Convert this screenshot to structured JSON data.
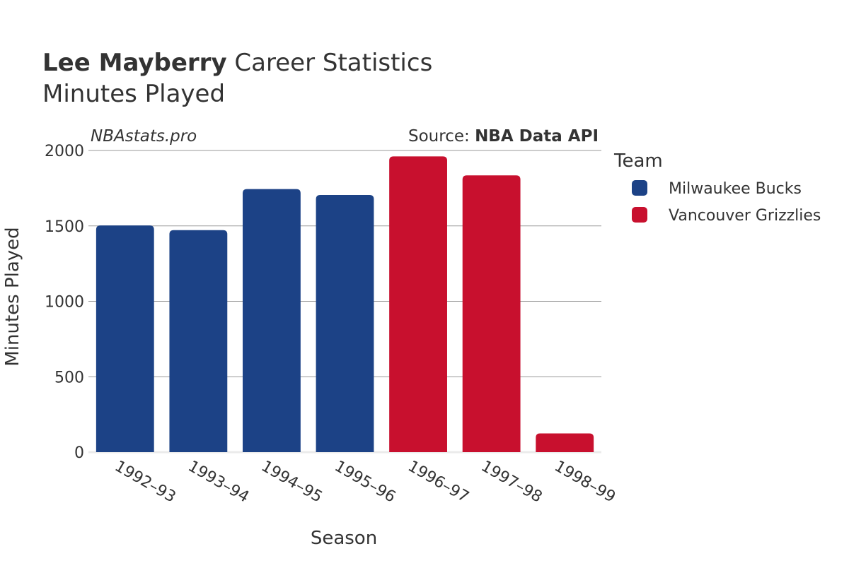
{
  "header": {
    "title_bold": "Lee Mayberry",
    "title_rest": " Career Statistics",
    "subtitle": "Minutes Played"
  },
  "watermark": "NBAstats.pro",
  "source": {
    "prefix": "Source: ",
    "name": "NBA Data API"
  },
  "colors": {
    "milwaukee_bucks": "#1c4286",
    "vancouver_grizzlies": "#c8102e",
    "gridline": "#999999",
    "text": "#333333"
  },
  "chart_data": {
    "type": "bar",
    "title": "Lee Mayberry Career Statistics",
    "subtitle": "Minutes Played",
    "xlabel": "Season",
    "ylabel": "Minutes Played",
    "ylim": [
      0,
      2000
    ],
    "yticks": [
      0,
      500,
      1000,
      1500,
      2000
    ],
    "grid": true,
    "legend_title": "Team",
    "legend_position": "right",
    "categories": [
      "1992–93",
      "1993–94",
      "1994–95",
      "1995–96",
      "1996–97",
      "1997–98",
      "1998–99"
    ],
    "series": [
      {
        "name": "Milwaukee Bucks",
        "color": "#1c4286",
        "values": [
          1503,
          1472,
          1744,
          1705,
          null,
          null,
          null
        ]
      },
      {
        "name": "Vancouver Grizzlies",
        "color": "#c8102e",
        "values": [
          null,
          null,
          null,
          null,
          1961,
          1835,
          124
        ]
      }
    ]
  }
}
